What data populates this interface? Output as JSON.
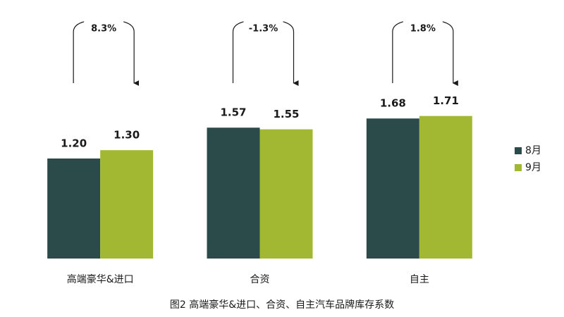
{
  "chart_data": {
    "type": "bar",
    "title": "图2 高端豪华&进口、合资、自主汽车品牌库存系数",
    "categories": [
      "高端豪华&进口",
      "合资",
      "自主"
    ],
    "series": [
      {
        "name": "8月",
        "color": "#2b4a4a",
        "values": [
          1.2,
          1.57,
          1.68
        ],
        "value_labels": [
          "1.20",
          "1.57",
          "1.68"
        ]
      },
      {
        "name": "9月",
        "color": "#a3b832",
        "values": [
          1.3,
          1.55,
          1.71
        ],
        "value_labels": [
          "1.30",
          "1.55",
          "1.71"
        ]
      }
    ],
    "annotations": [
      "8.3%",
      "-1.3%",
      "1.8%"
    ],
    "ylim": [
      0,
      3
    ],
    "legend": "right"
  }
}
